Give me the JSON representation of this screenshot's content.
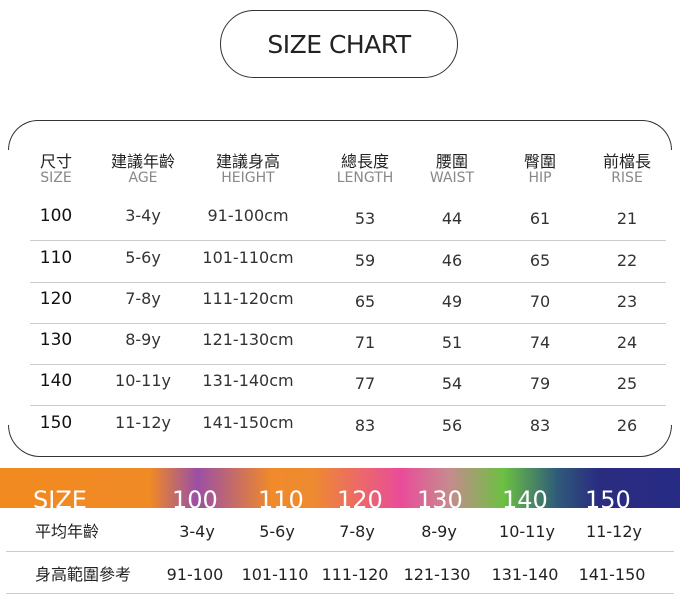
{
  "title": "SIZE CHART",
  "headers": [
    {
      "zh": "尺寸",
      "en": "SIZE"
    },
    {
      "zh": "建議年齡",
      "en": "AGE"
    },
    {
      "zh": "建議身高",
      "en": "HEIGHT"
    },
    {
      "zh": "總長度",
      "en": "LENGTH"
    },
    {
      "zh": "腰圍",
      "en": "WAIST"
    },
    {
      "zh": "臀圍",
      "en": "HIP"
    },
    {
      "zh": "前檔長",
      "en": "RISE"
    }
  ],
  "rows": [
    [
      "100",
      "3-4y",
      "91-100cm",
      "53",
      "44",
      "61",
      "21"
    ],
    [
      "110",
      "5-6y",
      "101-110cm",
      "59",
      "46",
      "65",
      "22"
    ],
    [
      "120",
      "7-8y",
      "111-120cm",
      "65",
      "49",
      "70",
      "23"
    ],
    [
      "130",
      "8-9y",
      "121-130cm",
      "71",
      "51",
      "74",
      "24"
    ],
    [
      "140",
      "10-11y",
      "131-140cm",
      "77",
      "54",
      "79",
      "25"
    ],
    [
      "150",
      "11-12y",
      "141-150cm",
      "83",
      "56",
      "83",
      "26"
    ]
  ],
  "band": {
    "label": "SIZE",
    "sizes": [
      "100",
      "110",
      "120",
      "130",
      "140",
      "150"
    ]
  },
  "summary": {
    "age_label": "平均年齡",
    "ages": [
      "3-4y",
      "5-6y",
      "7-8y",
      "8-9y",
      "10-11y",
      "11-12y"
    ],
    "height_label": "身高範圍參考",
    "heights": [
      "91-100",
      "101-110",
      "111-120",
      "121-130",
      "131-140",
      "141-150"
    ]
  }
}
